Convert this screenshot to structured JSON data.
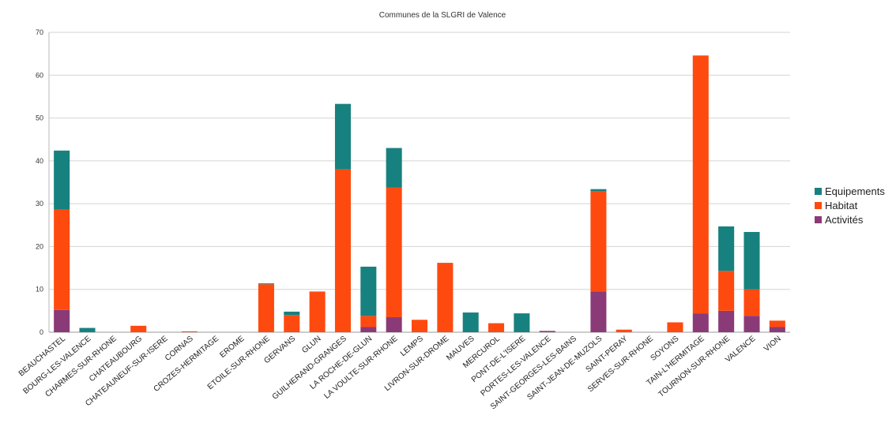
{
  "chart_data": {
    "type": "bar",
    "stacked": true,
    "subtitle": "Communes de la SLGRI de Valence",
    "categories": [
      "BEAUCHASTEL",
      "BOURG-LES-VALENCE",
      "CHARMES-SUR-RHONE",
      "CHATEAUBOURG",
      "CHATEAUNEUF-SUR-ISERE",
      "CORNAS",
      "CROZES-HERMITAGE",
      "EROME",
      "ETOILE-SUR-RHONE",
      "GERVANS",
      "GLUN",
      "GUILHERAND-GRANGES",
      "LA ROCHE-DE-GLUN",
      "LA VOULTE-SUR-RHONE",
      "LEMPS",
      "LIVRON-SUR-DROME",
      "MAUVES",
      "MERCUROL",
      "PONT-DE-L'ISERE",
      "PORTES-LES-VALENCE",
      "SAINT-GEORGES-LES-BAINS",
      "SAINT-JEAN-DE-MUZOLS",
      "SAINT-PERAY",
      "SERVES-SUR-RHONE",
      "SOYONS",
      "TAIN-L'HERMITAGE",
      "TOURNON-SUR-RHONE",
      "VALENCE",
      "VION"
    ],
    "series": [
      {
        "name": "Activités",
        "color": "#8b3a78",
        "values": [
          5.2,
          0,
          0,
          0,
          0,
          0,
          0,
          0,
          0,
          0,
          0,
          0,
          1.2,
          3.5,
          0,
          0,
          0,
          0,
          0,
          0.3,
          0,
          9.5,
          0,
          0,
          0,
          4.4,
          5.0,
          3.8,
          1.2
        ]
      },
      {
        "name": "Habitat",
        "color": "#ff4a0f",
        "values": [
          23.4,
          0,
          0,
          1.5,
          0,
          0.2,
          0,
          0,
          11.2,
          4.0,
          9.5,
          38.0,
          2.6,
          30.3,
          2.9,
          16.2,
          0,
          2.1,
          0,
          0,
          0,
          23.4,
          0.6,
          0,
          2.3,
          60.2,
          9.3,
          6.2,
          1.5
        ]
      },
      {
        "name": "Equipements",
        "color": "#17817f",
        "values": [
          13.8,
          1.0,
          0,
          0,
          0,
          0,
          0,
          0,
          0.2,
          0.8,
          0,
          15.3,
          11.5,
          9.2,
          0,
          0,
          4.6,
          0,
          4.4,
          0,
          0,
          0.5,
          0,
          0,
          0,
          0,
          10.4,
          13.4,
          0
        ]
      }
    ],
    "ylim": [
      0,
      70
    ],
    "yticks": [
      0,
      10,
      20,
      30,
      40,
      50,
      60,
      70
    ],
    "grid": true,
    "legend_position": "right"
  }
}
